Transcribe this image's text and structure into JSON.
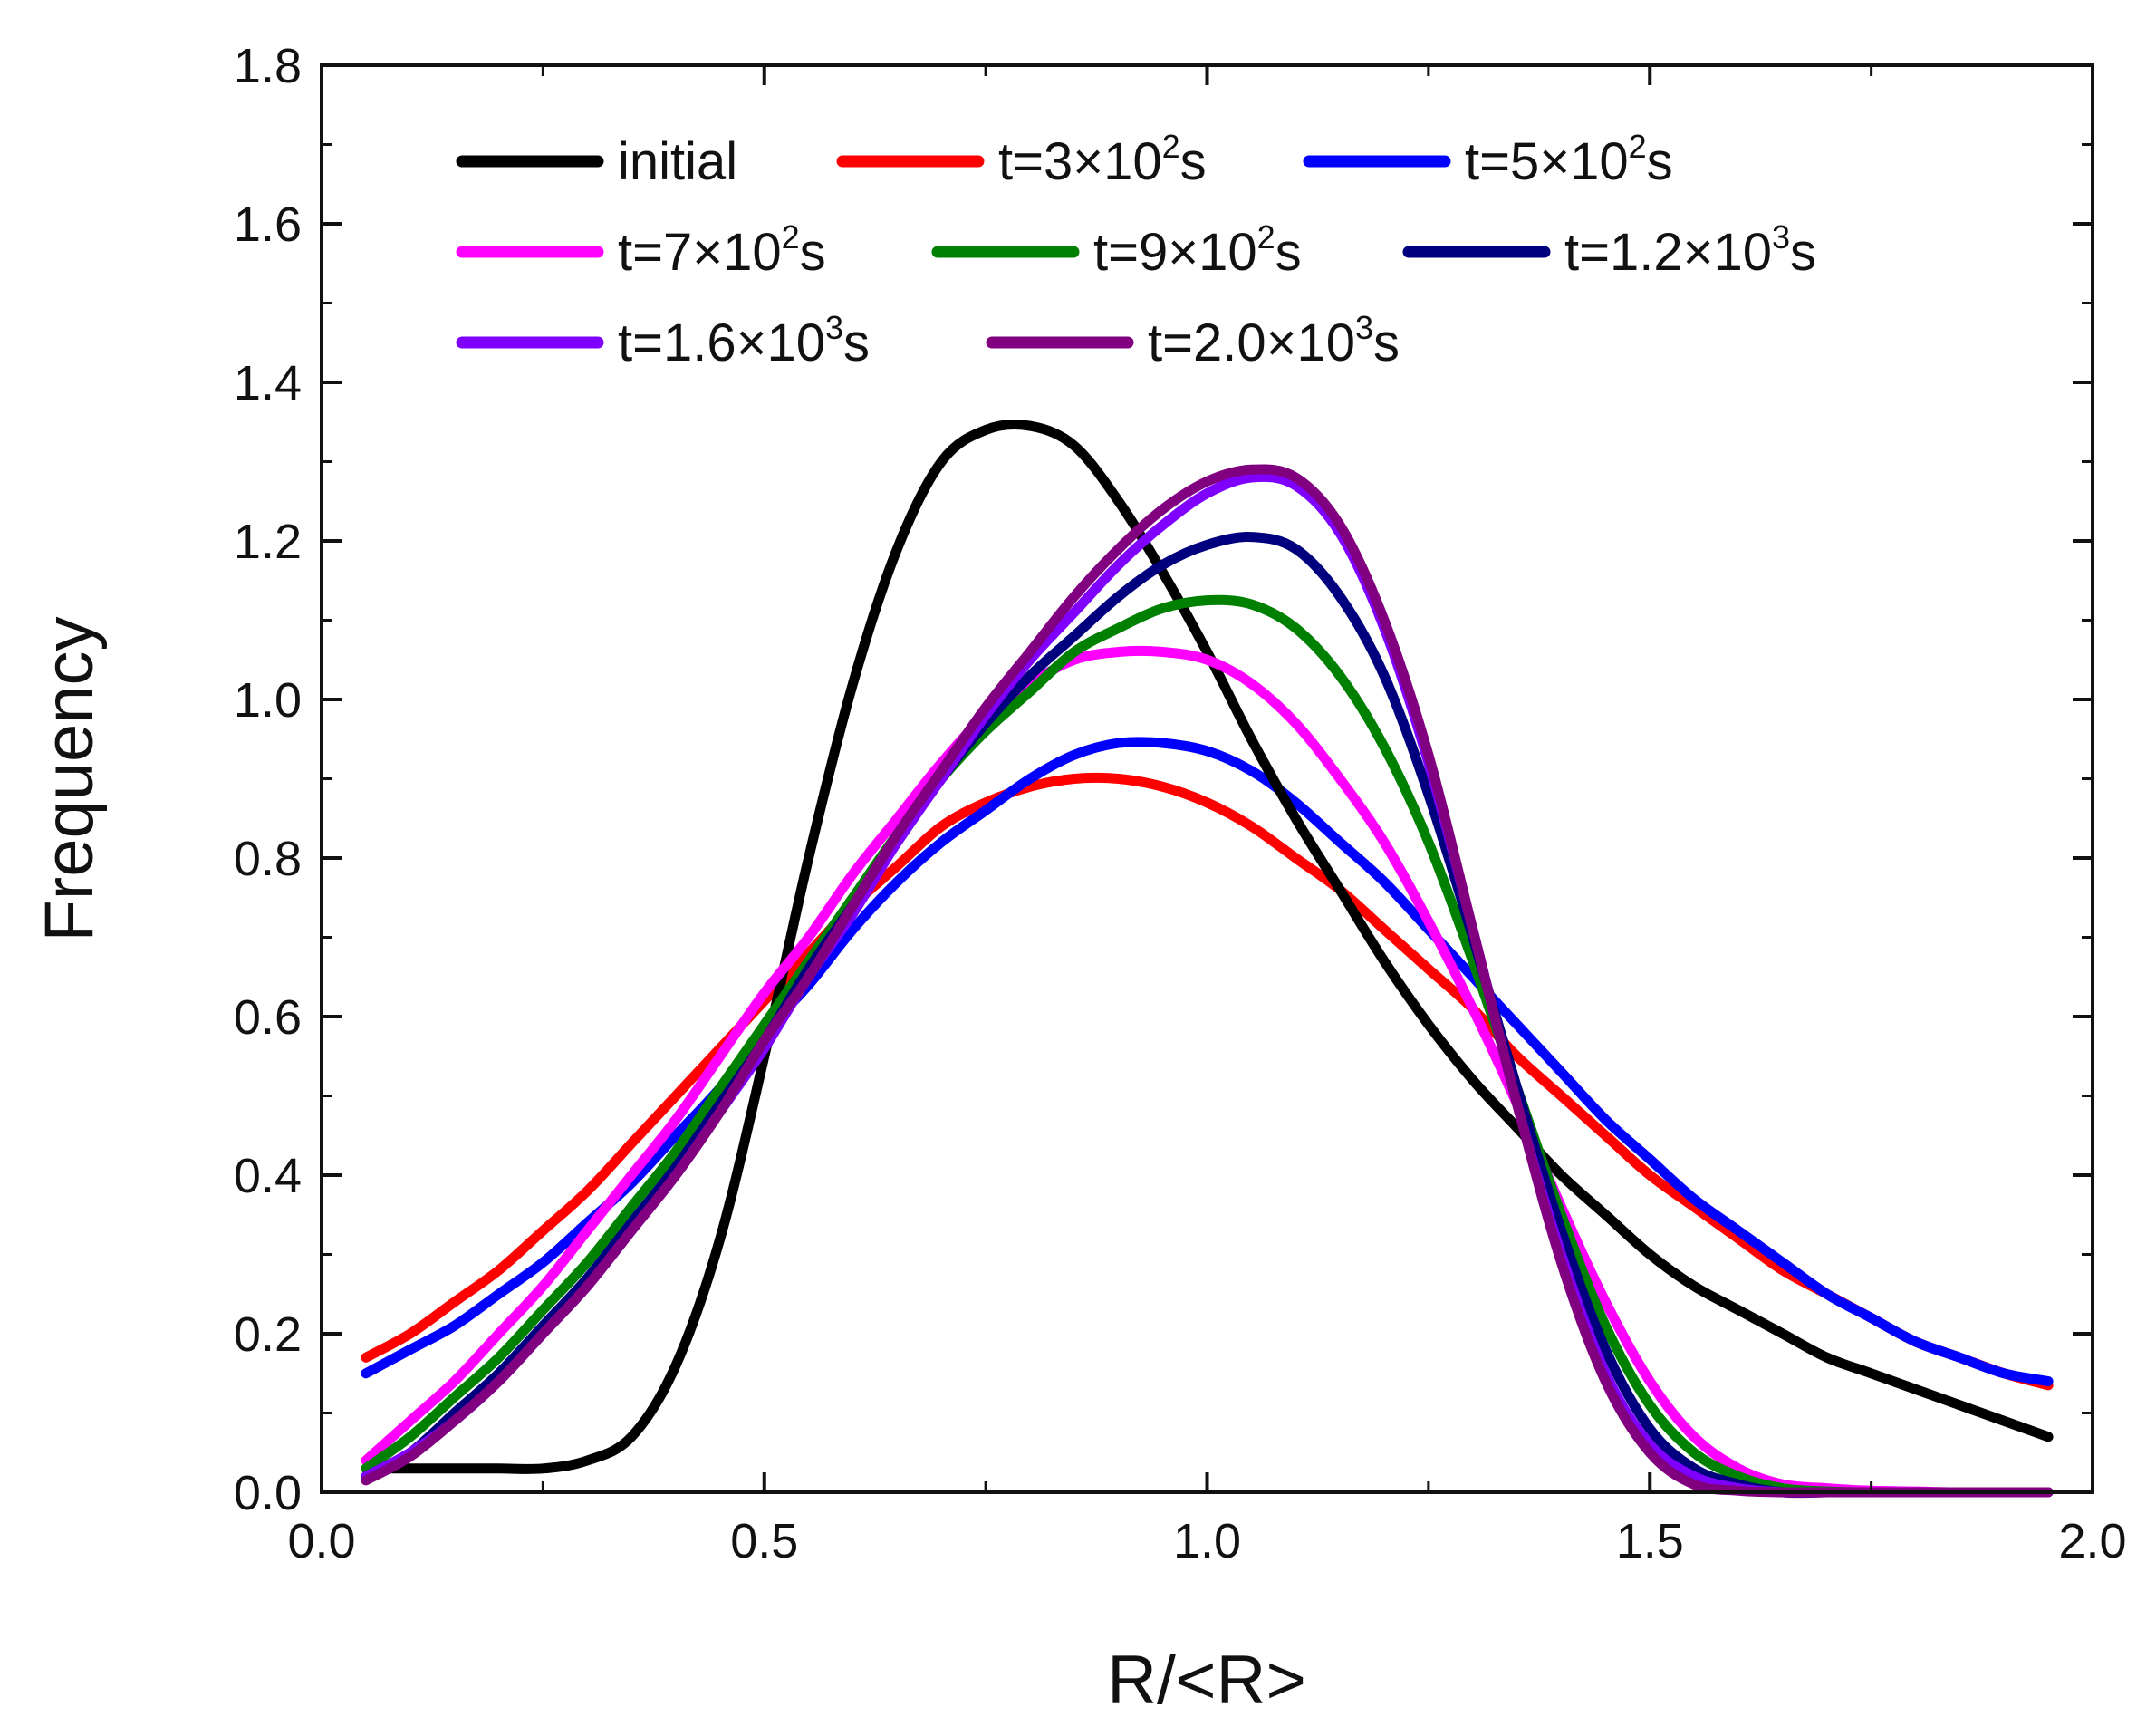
{
  "chart_data": {
    "type": "line",
    "title": "",
    "xlabel": "R/<R>",
    "ylabel": "Frequency",
    "xlim": [
      0.0,
      2.0
    ],
    "ylim": [
      0.0,
      1.8
    ],
    "xticks": [
      "0.0",
      "0.5",
      "1.0",
      "1.5",
      "2.0"
    ],
    "yticks": [
      "0.0",
      "0.2",
      "0.4",
      "0.6",
      "0.8",
      "1.0",
      "1.2",
      "1.4",
      "1.6",
      "1.8"
    ],
    "grid": false,
    "legend_placement": "top-left, 3 columns",
    "x": [
      0.05,
      0.1,
      0.15,
      0.2,
      0.25,
      0.3,
      0.35,
      0.4,
      0.45,
      0.5,
      0.55,
      0.6,
      0.65,
      0.7,
      0.75,
      0.8,
      0.85,
      0.9,
      0.95,
      1.0,
      1.05,
      1.1,
      1.15,
      1.2,
      1.25,
      1.3,
      1.35,
      1.4,
      1.45,
      1.5,
      1.55,
      1.6,
      1.65,
      1.7,
      1.75,
      1.8,
      1.85,
      1.9,
      1.95
    ],
    "series": [
      {
        "name": "initial",
        "label_pre": "initial",
        "label_sup": "",
        "label_post": "",
        "color": "#000000",
        "values": [
          0.03,
          0.03,
          0.03,
          0.03,
          0.03,
          0.04,
          0.07,
          0.16,
          0.32,
          0.55,
          0.8,
          1.02,
          1.19,
          1.3,
          1.34,
          1.345,
          1.32,
          1.25,
          1.16,
          1.06,
          0.95,
          0.85,
          0.76,
          0.67,
          0.59,
          0.52,
          0.46,
          0.4,
          0.35,
          0.3,
          0.26,
          0.23,
          0.2,
          0.17,
          0.15,
          0.13,
          0.11,
          0.09,
          0.07
        ]
      },
      {
        "name": "t=3×10²s",
        "label_pre": "t=3×10",
        "label_sup": "2",
        "label_post": "s",
        "color": "#ff0000",
        "values": [
          0.17,
          0.2,
          0.24,
          0.28,
          0.33,
          0.38,
          0.44,
          0.5,
          0.56,
          0.62,
          0.68,
          0.74,
          0.79,
          0.84,
          0.87,
          0.89,
          0.9,
          0.9,
          0.89,
          0.87,
          0.84,
          0.8,
          0.76,
          0.71,
          0.66,
          0.61,
          0.55,
          0.5,
          0.45,
          0.4,
          0.36,
          0.32,
          0.28,
          0.25,
          0.22,
          0.19,
          0.17,
          0.15,
          0.135
        ]
      },
      {
        "name": "t=5×10²s",
        "label_pre": "t=5×10",
        "label_sup": "2",
        "label_post": "s",
        "color": "#0000ff",
        "values": [
          0.15,
          0.18,
          0.21,
          0.25,
          0.29,
          0.34,
          0.39,
          0.45,
          0.51,
          0.58,
          0.64,
          0.71,
          0.77,
          0.82,
          0.86,
          0.9,
          0.93,
          0.945,
          0.945,
          0.935,
          0.91,
          0.87,
          0.82,
          0.77,
          0.71,
          0.65,
          0.59,
          0.53,
          0.47,
          0.42,
          0.37,
          0.33,
          0.29,
          0.25,
          0.22,
          0.19,
          0.17,
          0.15,
          0.14
        ]
      },
      {
        "name": "t=7×10²s",
        "label_pre": "t=7×10",
        "label_sup": "2",
        "label_post": "s",
        "color": "#ff00ff",
        "values": [
          0.04,
          0.09,
          0.14,
          0.2,
          0.26,
          0.33,
          0.4,
          0.47,
          0.55,
          0.63,
          0.7,
          0.78,
          0.85,
          0.92,
          0.98,
          1.02,
          1.05,
          1.06,
          1.06,
          1.05,
          1.02,
          0.97,
          0.9,
          0.82,
          0.72,
          0.61,
          0.49,
          0.36,
          0.24,
          0.14,
          0.07,
          0.03,
          0.01,
          0.005,
          0.002,
          0.001,
          0.0,
          0.0,
          0.0
        ]
      },
      {
        "name": "t=9×10²s",
        "label_pre": "t=9×10",
        "label_sup": "2",
        "label_post": "s",
        "color": "#008000",
        "values": [
          0.03,
          0.07,
          0.12,
          0.17,
          0.23,
          0.29,
          0.36,
          0.43,
          0.51,
          0.59,
          0.67,
          0.75,
          0.83,
          0.9,
          0.96,
          1.01,
          1.06,
          1.09,
          1.115,
          1.125,
          1.12,
          1.09,
          1.03,
          0.94,
          0.82,
          0.67,
          0.51,
          0.35,
          0.21,
          0.11,
          0.05,
          0.02,
          0.005,
          0.001,
          0.0,
          0.0,
          0.0,
          0.0,
          0.0
        ]
      },
      {
        "name": "t=1.2×10³s",
        "label_pre": "t=1.2×10",
        "label_sup": "3",
        "label_post": "s",
        "color": "#00007f",
        "values": [
          0.02,
          0.05,
          0.1,
          0.15,
          0.21,
          0.27,
          0.34,
          0.41,
          0.49,
          0.57,
          0.66,
          0.74,
          0.82,
          0.9,
          0.97,
          1.03,
          1.08,
          1.13,
          1.17,
          1.195,
          1.205,
          1.19,
          1.13,
          1.03,
          0.88,
          0.7,
          0.51,
          0.33,
          0.18,
          0.08,
          0.03,
          0.01,
          0.0,
          0.0,
          0.0,
          0.0,
          0.0,
          0.0,
          0.0
        ]
      },
      {
        "name": "t=1.6×10³s",
        "label_pre": "t=1.6×10",
        "label_sup": "3",
        "label_post": "s",
        "color": "#7f00ff",
        "values": [
          0.02,
          0.05,
          0.09,
          0.14,
          0.2,
          0.26,
          0.33,
          0.4,
          0.48,
          0.56,
          0.65,
          0.73,
          0.82,
          0.9,
          0.98,
          1.05,
          1.11,
          1.17,
          1.22,
          1.26,
          1.28,
          1.27,
          1.21,
          1.09,
          0.92,
          0.71,
          0.49,
          0.3,
          0.15,
          0.06,
          0.02,
          0.005,
          0.0,
          0.0,
          0.0,
          0.0,
          0.0,
          0.0,
          0.0
        ]
      },
      {
        "name": "t=2.0×10³s",
        "label_pre": "t=2.0×10",
        "label_sup": "3",
        "label_post": "s",
        "color": "#800080",
        "values": [
          0.015,
          0.045,
          0.09,
          0.14,
          0.2,
          0.26,
          0.33,
          0.4,
          0.48,
          0.57,
          0.65,
          0.74,
          0.83,
          0.91,
          0.99,
          1.06,
          1.13,
          1.19,
          1.24,
          1.275,
          1.29,
          1.28,
          1.22,
          1.1,
          0.93,
          0.71,
          0.49,
          0.29,
          0.14,
          0.05,
          0.01,
          0.002,
          0.0,
          0.0,
          0.0,
          0.0,
          0.0,
          0.0,
          0.0
        ]
      }
    ]
  }
}
